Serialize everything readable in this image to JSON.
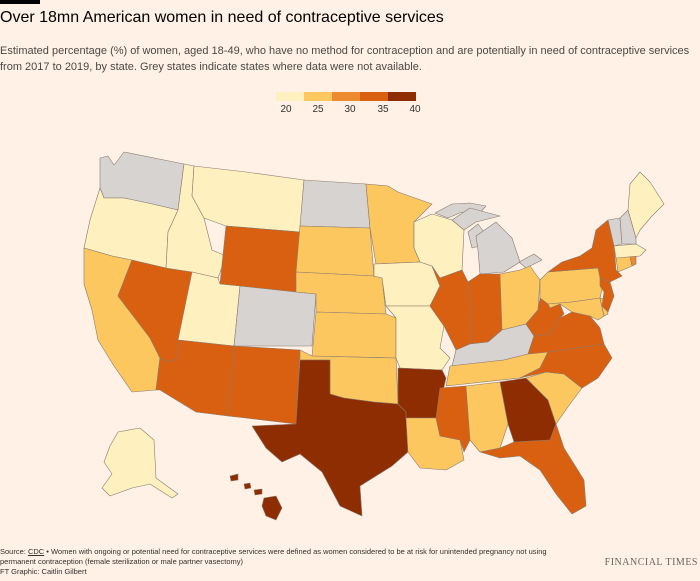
{
  "title": "Over 18mn American women in need of contraceptive services",
  "subtitle": "Estimated percentage (%) of women, aged 18-49, who have no method for contraception and are potentially in need of contraceptive services from 2017 to 2019, by state. Grey states indicate states where data were not available.",
  "legend": {
    "ticks": [
      "20",
      "25",
      "30",
      "35",
      "40"
    ],
    "colors": [
      "#FFF0BF",
      "#FCC75F",
      "#EB8A2E",
      "#DA6011",
      "#8E2D02"
    ]
  },
  "no_data_color": "#D6D3D0",
  "footer": {
    "source_prefix": "Source: ",
    "source_link": "CDC",
    "note": " • Women with ongoing or potential need for contraceptive services were defined as women considered to be at risk for unintended pregnancy not using permanent contraception (female sterilization or male partner vasectomy)",
    "credit": "FT Graphic: Caitlin Gilbert"
  },
  "logo": "FINANCIAL TIMES",
  "states": {
    "WA": "#D6D3D0",
    "OR": "#FFF0BF",
    "CA": "#FCC75F",
    "ID": "#FFF0BF",
    "NV": "#DA6011",
    "MT": "#FFF0BF",
    "WY": "#DA6011",
    "UT": "#FFF0BF",
    "AZ": "#DA6011",
    "CO": "#D6D3D0",
    "NM": "#DA6011",
    "ND": "#D6D3D0",
    "SD": "#FCC75F",
    "NE": "#FCC75F",
    "KS": "#FCC75F",
    "OK": "#FCC75F",
    "TX": "#8E2D02",
    "MN": "#FCC75F",
    "IA": "#FFF0BF",
    "MO": "#FFF0BF",
    "AR": "#8E2D02",
    "LA": "#FCC75F",
    "WI": "#FFF0BF",
    "IL": "#DA6011",
    "MI": "#D6D3D0",
    "IN": "#DA6011",
    "OH": "#FCC75F",
    "KY": "#D6D3D0",
    "TN": "#FCC75F",
    "MS": "#DA6011",
    "AL": "#FCC75F",
    "GA": "#8E2D02",
    "FL": "#DA6011",
    "SC": "#FCC75F",
    "NC": "#DA6011",
    "VA": "#DA6011",
    "WV": "#DA6011",
    "PA": "#FCC75F",
    "NY": "#DA6011",
    "NJ": "#DA6011",
    "DE": "#FCC75F",
    "MD": "#FCC75F",
    "CT": "#FCC75F",
    "RI": "#EB8A2E",
    "MA": "#FFF0BF",
    "VT": "#D6D3D0",
    "NH": "#D6D3D0",
    "ME": "#FFF0BF",
    "AK": "#FFF0BF",
    "HI": "#8E2D02"
  }
}
